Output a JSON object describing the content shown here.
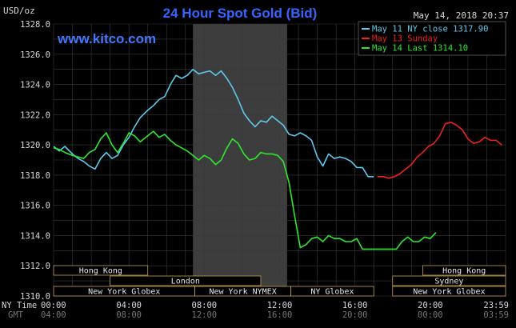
{
  "chart_data": {
    "type": "line",
    "title": "24 Hour Spot Gold (Bid)",
    "ylabel": "USD/oz",
    "watermark": "www.kitco.com",
    "timestamp": "May 14, 2018 20:37",
    "ylim": [
      1310.0,
      1328.0
    ],
    "y_ticks": [
      "1328.0",
      "1326.0",
      "1324.0",
      "1322.0",
      "1320.0",
      "1318.0",
      "1316.0",
      "1314.0",
      "1312.0",
      "1310.0"
    ],
    "x_row1_label": "NY Time",
    "x_row2_label": "GMT",
    "x_ticks_ny": [
      "00:00",
      "04:00",
      "08:00",
      "12:00",
      "16:00",
      "20:00",
      "23:59"
    ],
    "x_ticks_gmt": [
      "04:00",
      "08:00",
      "12:00",
      "16:00",
      "20:00",
      "00:00",
      "03:59"
    ],
    "legend_position": "top-right",
    "grid": true,
    "highlight_range": [
      7.4,
      12.4
    ],
    "colors": {
      "background": "#000000",
      "grid": "#3a3a3a",
      "title": "#3366ff",
      "text": "#d8d8d8",
      "highlight": "#3d3d3d",
      "session_border": "#c8a050"
    },
    "series": [
      {
        "name": "May 11 NY close 1317.90",
        "color": "#5ec8ec",
        "x": [
          0.0,
          0.3,
          0.6,
          1.0,
          1.3,
          1.6,
          1.9,
          2.2,
          2.5,
          2.8,
          3.1,
          3.4,
          3.7,
          4.0,
          4.3,
          4.6,
          5.0,
          5.3,
          5.6,
          5.9,
          6.2,
          6.5,
          6.8,
          7.1,
          7.4,
          7.7,
          8.0,
          8.3,
          8.6,
          8.9,
          9.2,
          9.5,
          9.8,
          10.1,
          10.4,
          10.7,
          11.0,
          11.3,
          11.6,
          11.9,
          12.2,
          12.5,
          12.8,
          13.1,
          13.4,
          13.7,
          14.0,
          14.3,
          14.6,
          14.9,
          15.2,
          15.5,
          15.8,
          16.1,
          16.4,
          16.7,
          17.0
        ],
        "values": [
          1319.9,
          1319.6,
          1319.9,
          1319.4,
          1319.1,
          1318.9,
          1318.6,
          1318.4,
          1319.1,
          1319.5,
          1319.1,
          1319.3,
          1320.0,
          1320.5,
          1321.2,
          1321.8,
          1322.3,
          1322.6,
          1323.0,
          1323.2,
          1324.0,
          1324.6,
          1324.4,
          1324.6,
          1325.0,
          1324.7,
          1324.8,
          1324.9,
          1324.6,
          1324.9,
          1324.4,
          1323.8,
          1323.0,
          1322.1,
          1321.6,
          1321.2,
          1321.6,
          1321.5,
          1321.9,
          1321.6,
          1321.3,
          1320.7,
          1320.6,
          1320.8,
          1320.6,
          1320.3,
          1319.2,
          1318.6,
          1319.4,
          1319.1,
          1319.2,
          1319.1,
          1318.9,
          1318.5,
          1318.5,
          1317.9,
          1317.9
        ]
      },
      {
        "name": "May 13 Sunday",
        "color": "#ee2020",
        "x": [
          17.2,
          17.5,
          17.8,
          18.1,
          18.4,
          18.7,
          19.0,
          19.3,
          19.6,
          19.9,
          20.2,
          20.5,
          20.8,
          21.1,
          21.4,
          21.7,
          22.0,
          22.3,
          22.6,
          22.9,
          23.2,
          23.5,
          23.8
        ],
        "values": [
          1317.9,
          1317.9,
          1317.8,
          1317.9,
          1318.1,
          1318.4,
          1318.7,
          1319.2,
          1319.5,
          1319.9,
          1320.1,
          1320.6,
          1321.4,
          1321.5,
          1321.3,
          1321.0,
          1320.4,
          1320.1,
          1320.2,
          1320.5,
          1320.3,
          1320.3,
          1320.0
        ]
      },
      {
        "name": "May 14 Last 1314.10",
        "color": "#2ee82e",
        "x": [
          0.0,
          0.3,
          0.6,
          1.0,
          1.3,
          1.6,
          1.9,
          2.2,
          2.5,
          2.8,
          3.1,
          3.4,
          3.7,
          4.0,
          4.3,
          4.6,
          5.0,
          5.3,
          5.6,
          5.9,
          6.2,
          6.5,
          6.8,
          7.1,
          7.4,
          7.7,
          8.0,
          8.3,
          8.6,
          8.9,
          9.2,
          9.5,
          9.8,
          10.1,
          10.4,
          10.7,
          11.0,
          11.3,
          11.6,
          11.9,
          12.2,
          12.5,
          12.8,
          13.1,
          13.4,
          13.7,
          14.0,
          14.3,
          14.6,
          14.9,
          15.2,
          15.5,
          15.8,
          16.1,
          16.4,
          16.7,
          17.0,
          17.3,
          17.6,
          17.9,
          18.2,
          18.5,
          18.8,
          19.1,
          19.4,
          19.7,
          20.0,
          20.3
        ],
        "values": [
          1319.8,
          1319.7,
          1319.5,
          1319.3,
          1319.2,
          1319.1,
          1319.5,
          1319.7,
          1320.4,
          1320.8,
          1320.0,
          1319.5,
          1320.1,
          1320.8,
          1320.6,
          1320.2,
          1320.6,
          1320.9,
          1320.5,
          1320.7,
          1320.3,
          1320.0,
          1319.8,
          1319.6,
          1319.3,
          1319.0,
          1319.3,
          1319.1,
          1318.7,
          1319.0,
          1319.8,
          1320.4,
          1320.1,
          1319.4,
          1319.0,
          1319.1,
          1319.5,
          1319.4,
          1319.4,
          1319.3,
          1318.9,
          1317.5,
          1315.3,
          1313.2,
          1313.4,
          1313.8,
          1313.9,
          1313.6,
          1314.0,
          1313.8,
          1313.8,
          1313.6,
          1313.6,
          1313.8,
          1313.1,
          1313.1,
          1313.1,
          1313.1,
          1313.1,
          1313.1,
          1313.1,
          1313.6,
          1313.9,
          1313.6,
          1313.6,
          1313.9,
          1313.8,
          1314.2
        ]
      }
    ],
    "sessions": [
      {
        "label": "Hong Kong",
        "row": 0,
        "start": 0.0,
        "end": 5.0
      },
      {
        "label": "Hong Kong",
        "row": 0,
        "start": 19.6,
        "end": 24.0
      },
      {
        "label": "London",
        "row": 1,
        "start": 3.0,
        "end": 11.0
      },
      {
        "label": "Sydney",
        "row": 1,
        "start": 18.0,
        "end": 24.0
      },
      {
        "label": "New York Globex",
        "row": 2,
        "start": 0.0,
        "end": 7.5
      },
      {
        "label": "New York NYMEX",
        "row": 2,
        "start": 7.5,
        "end": 12.6
      },
      {
        "label": "NY Globex",
        "row": 2,
        "start": 12.6,
        "end": 17.0
      },
      {
        "label": "New York Globex",
        "row": 2,
        "start": 18.0,
        "end": 24.0
      }
    ]
  }
}
